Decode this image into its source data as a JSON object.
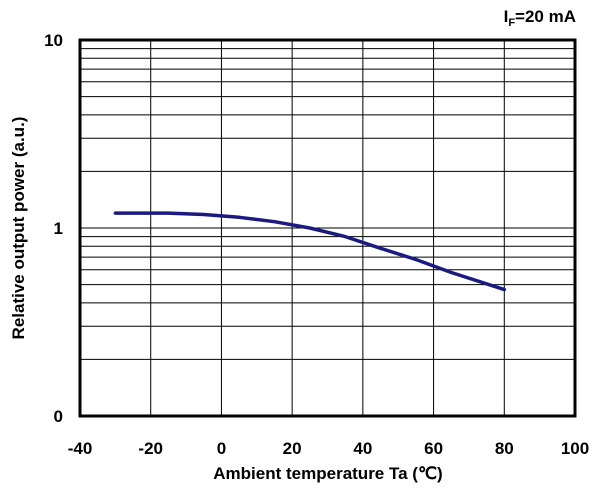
{
  "chart_data": {
    "type": "line",
    "condition_label": {
      "symbol": "I",
      "subscript": "F",
      "rest": "=20 mA"
    },
    "xlabel": "Ambient temperature Ta (℃)",
    "ylabel": "Relative output power (a.u.)",
    "x_scale": "linear",
    "y_scale": "log",
    "xlim": [
      -40,
      100
    ],
    "x_ticks": [
      "-40",
      "-20",
      "0",
      "20",
      "40",
      "60",
      "80",
      "100"
    ],
    "y_ticks": [
      {
        "label": "10",
        "value": 10
      },
      {
        "label": "1",
        "value": 1
      },
      {
        "label": "0",
        "value": 0.1
      }
    ],
    "grid": true,
    "series": [
      {
        "color": "#1a1a80",
        "x": [
          -30,
          -15,
          -5,
          5,
          15,
          25,
          35,
          45,
          55,
          65,
          80
        ],
        "y": [
          1.2,
          1.2,
          1.18,
          1.14,
          1.08,
          1.0,
          0.9,
          0.78,
          0.68,
          0.58,
          0.47
        ]
      }
    ]
  }
}
